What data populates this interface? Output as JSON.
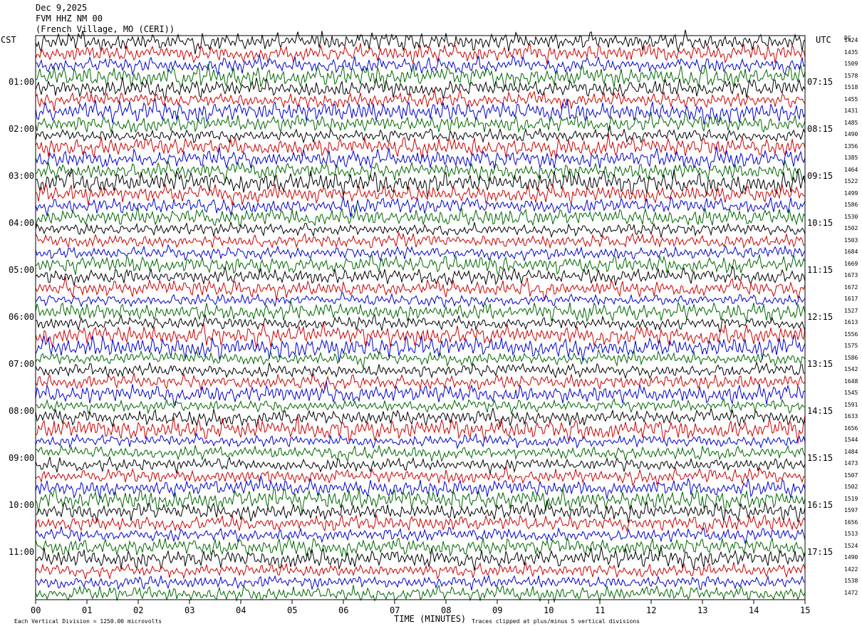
{
  "header": {
    "date": "Dec 9,2025",
    "station": "FVM HHZ NM 00",
    "location": "(French Village, MO (CERI))"
  },
  "left_axis_title": "CST",
  "right_axis_title": "UTC",
  "dc_title": "DC",
  "footer": {
    "scale": "Each Vertical Division = 1250.00 microvolts",
    "clip": "Traces clipped at plus/minus 5 vertical divisions"
  },
  "chart_data": {
    "type": "line",
    "xlabel": "TIME (MINUTES)",
    "xlim": [
      0,
      15
    ],
    "x_ticks": [
      "00",
      "01",
      "02",
      "03",
      "04",
      "05",
      "06",
      "07",
      "08",
      "09",
      "10",
      "11",
      "12",
      "13",
      "14",
      "15"
    ],
    "trace_count": 48,
    "trace_colors": [
      "#000000",
      "#cc0000",
      "#0000cc",
      "#006600"
    ],
    "left_time_labels": [
      "01:00",
      "02:00",
      "03:00",
      "04:00",
      "05:00",
      "06:00",
      "07:00",
      "08:00",
      "09:00",
      "10:00",
      "11:00"
    ],
    "right_time_labels": [
      "07:15",
      "08:15",
      "09:15",
      "10:15",
      "11:15",
      "12:15",
      "13:15",
      "14:15",
      "15:15",
      "16:15",
      "17:15"
    ],
    "dc_values": [
      "1424",
      "1435",
      "1509",
      "1578",
      "1518",
      "1455",
      "1431",
      "1485",
      "1490",
      "1356",
      "1385",
      "1464",
      "1522",
      "1499",
      "1586",
      "1530",
      "1502",
      "1503",
      "1684",
      "1669",
      "1673",
      "1672",
      "1617",
      "1527",
      "1613",
      "1556",
      "1575",
      "1586",
      "1542",
      "1648",
      "1545",
      "1591",
      "1633",
      "1656",
      "1544",
      "1484",
      "1473",
      "1507",
      "1502",
      "1519",
      "1597",
      "1656",
      "1513",
      "1524",
      "1490",
      "1422",
      "1538",
      "1472"
    ]
  }
}
